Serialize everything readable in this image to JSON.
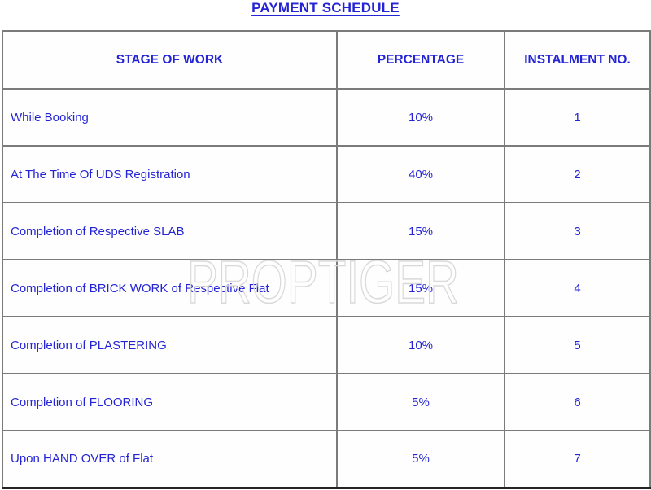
{
  "title": "PAYMENT SCHEDULE",
  "watermark": "PROPTIGER",
  "colors": {
    "text_blue": "#2424d6",
    "grid_border_gray": "#7b7b7b",
    "outer_border_gray": "#5a5a5a",
    "watermark_gray": "#d9d9d9",
    "background": "#ffffff"
  },
  "table": {
    "headers": [
      "STAGE OF WORK",
      "PERCENTAGE",
      "INSTALMENT NO."
    ],
    "rows": [
      {
        "stage": "While Booking",
        "percentage": "10%",
        "instalment": "1"
      },
      {
        "stage": "At The Time Of UDS Registration",
        "percentage": "40%",
        "instalment": "2"
      },
      {
        "stage": "Completion of Respective SLAB",
        "percentage": "15%",
        "instalment": "3"
      },
      {
        "stage": "Completion of BRICK WORK of Respective Flat",
        "percentage": "15%",
        "instalment": "4"
      },
      {
        "stage": "Completion of PLASTERING",
        "percentage": "10%",
        "instalment": "5"
      },
      {
        "stage": "Completion of FLOORING",
        "percentage": "5%",
        "instalment": "6"
      },
      {
        "stage": "Upon HAND OVER of Flat",
        "percentage": "5%",
        "instalment": "7"
      }
    ]
  }
}
